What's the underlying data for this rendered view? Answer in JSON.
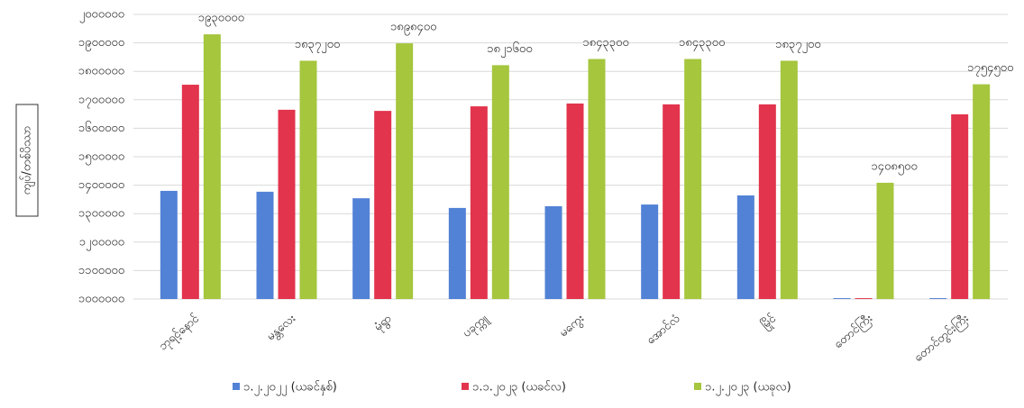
{
  "chart_data": {
    "type": "bar",
    "y_label": "ကျပ်/တစ်ပိဿာ",
    "categories": [
      "ဘုရင့်နောင်",
      "မန္တလေး",
      "မုံရွာ",
      "ပခုက္ကူ",
      "မကွေး",
      "အောင်လံ",
      "မြိုင်",
      "တောင်ကြီး",
      "တောင်တွင်းကြီး"
    ],
    "series": [
      {
        "name": "၁.၂.၂၀၂၂ (ယခင်နှစ်)",
        "color": "#5282d6",
        "values": [
          1380000,
          1377000,
          1354000,
          1320000,
          1326000,
          1332000,
          1364000,
          1003000,
          1003000
        ]
      },
      {
        "name": "၁.၁.၂၀၂၃ (ယခင်လ)",
        "color": "#e2344c",
        "values": [
          1753000,
          1665000,
          1661000,
          1677000,
          1687000,
          1684000,
          1684000,
          1003000,
          1649000
        ]
      },
      {
        "name": "၁.၂.၂၀၂၃ (ယခုလ)",
        "color": "#a5c63d",
        "values": [
          1930000,
          1837200,
          1898400,
          1821600,
          1843300,
          1843300,
          1837200,
          1408500,
          1754500
        ],
        "value_labels": [
          "၁၉၃၀၀၀၀",
          "၁၈၃၇၂၀၀",
          "၁၈၉၈၄၀၀",
          "၁၈၂၁၆၀၀",
          "၁၈၄၃၃၀၀",
          "၁၈၄၃၃၀၀",
          "၁၈၃၇၂၀၀",
          "၁၄၀၈၅၀၀",
          "၁၇၅၄၅၀၀"
        ]
      }
    ],
    "ylim": [
      1000000,
      2000000
    ],
    "yticks": [
      {
        "value": 1000000,
        "label": "၁၀၀၀၀၀၀"
      },
      {
        "value": 1100000,
        "label": "၁၁၀၀၀၀၀"
      },
      {
        "value": 1200000,
        "label": "၁၂၀၀၀၀၀"
      },
      {
        "value": 1300000,
        "label": "၁၃၀၀၀၀၀"
      },
      {
        "value": 1400000,
        "label": "၁၄၀၀၀၀၀"
      },
      {
        "value": 1500000,
        "label": "၁၅၀၀၀၀၀"
      },
      {
        "value": 1600000,
        "label": "၁၆၀၀၀၀၀"
      },
      {
        "value": 1700000,
        "label": "၁၇၀၀၀၀၀"
      },
      {
        "value": 1800000,
        "label": "၁၈၀၀၀၀၀"
      },
      {
        "value": 1900000,
        "label": "၁၉၀၀၀၀၀"
      },
      {
        "value": 2000000,
        "label": "၂၀၀၀၀၀၀"
      }
    ],
    "grid": true
  }
}
